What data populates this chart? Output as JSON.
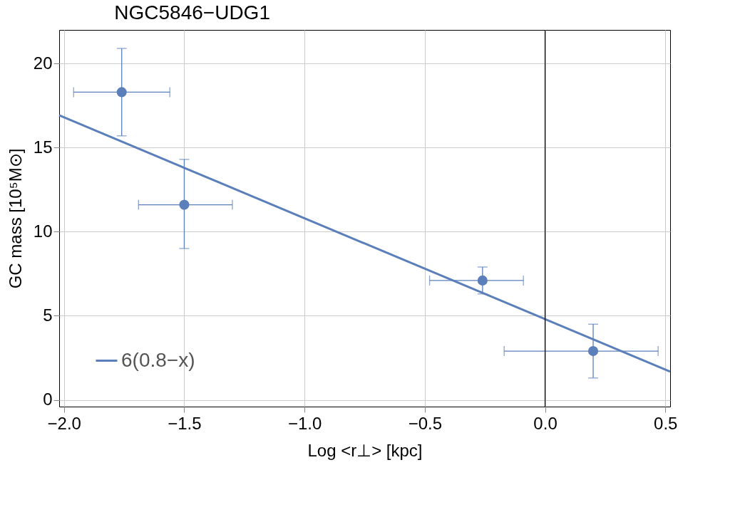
{
  "chart_data": {
    "type": "scatter",
    "title": "NGC5846−UDG1",
    "xlabel": "Log <r⊥> [kpc]",
    "ylabel": "GC mass [10⁵M⊙]",
    "xlim": [
      -2.02,
      0.52
    ],
    "ylim": [
      -0.4,
      22
    ],
    "xticks": [
      {
        "value": -2,
        "label": "−2.0"
      },
      {
        "value": -1.5,
        "label": "−1.5"
      },
      {
        "value": -1,
        "label": "−1.0"
      },
      {
        "value": -0.5,
        "label": "−0.5"
      },
      {
        "value": 0,
        "label": "0.0"
      },
      {
        "value": 0.5,
        "label": "0.5"
      }
    ],
    "yticks": [
      0,
      5,
      10,
      15,
      20
    ],
    "grid": true,
    "legend": "bottom left",
    "ref_lines": [
      {
        "axis": "x",
        "value": 0,
        "color": "#000000"
      }
    ],
    "series": [
      {
        "marker": "circle",
        "color": "#5b7fba",
        "x": [
          -1.76,
          -1.5,
          -0.26,
          0.2
        ],
        "values": [
          18.3,
          11.6,
          7.1,
          2.9
        ],
        "errors": [
          [
            15.7,
            20.9
          ],
          [
            9.0,
            14.3
          ],
          [
            6.3,
            7.9
          ],
          [
            1.3,
            4.5
          ]
        ],
        "xerrors": [
          [
            -1.96,
            -1.56
          ],
          [
            -1.69,
            -1.3
          ],
          [
            -0.48,
            -0.09
          ],
          [
            -0.17,
            0.47
          ]
        ]
      },
      {
        "type": "line",
        "name": "6(0.8−x)",
        "color": "#5b7fba",
        "line_style": "solid",
        "x": [
          -2.02,
          0.52
        ],
        "values": [
          16.92,
          1.68
        ]
      }
    ]
  }
}
